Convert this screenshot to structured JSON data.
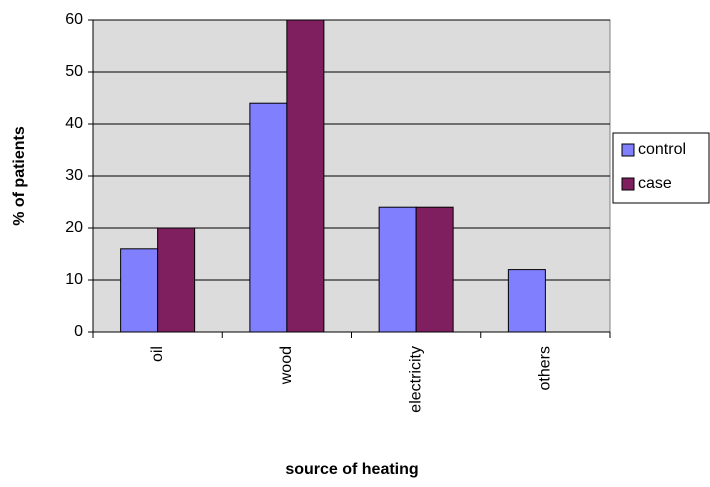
{
  "chart_data": {
    "type": "bar",
    "x_label": "source of heating",
    "y_label": "% of patients",
    "categories": [
      "oil",
      "wood",
      "electricity",
      "others"
    ],
    "series": [
      {
        "name": "control",
        "color": "#8080ff",
        "values": [
          16,
          44,
          24,
          12
        ]
      },
      {
        "name": "case",
        "color": "#801f5f",
        "values": [
          20,
          60,
          24,
          0
        ]
      }
    ],
    "ylim": [
      0,
      60
    ],
    "yticks": [
      0,
      10,
      20,
      30,
      40,
      50,
      60
    ],
    "grid": true,
    "legend": "right"
  }
}
